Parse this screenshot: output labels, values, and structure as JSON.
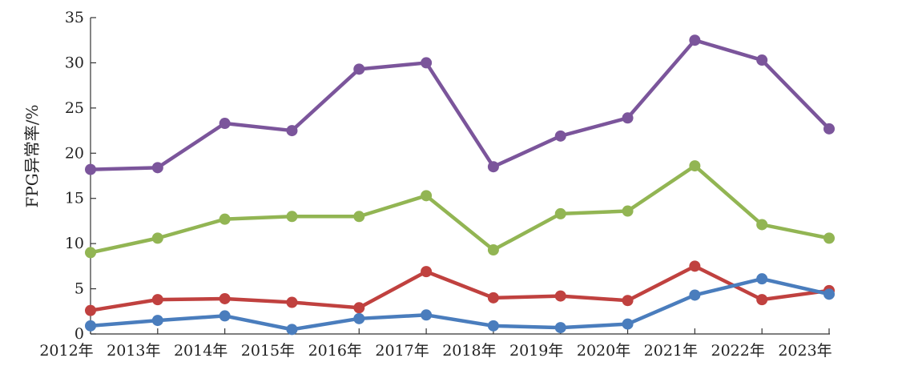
{
  "chart_data": {
    "type": "line",
    "title": "",
    "xlabel": "",
    "ylabel": "FPG异常率/%",
    "categories": [
      "2012年",
      "2013年",
      "2014年",
      "2015年",
      "2016年",
      "2017年",
      "2018年",
      "2019年",
      "2020年",
      "2021年",
      "2022年",
      "2023年"
    ],
    "ylim": [
      0,
      35
    ],
    "yticks": [
      "0",
      "5",
      "10",
      "15",
      "20",
      "25",
      "30",
      "35"
    ],
    "grid": false,
    "legend": "none",
    "series": [
      {
        "color": "#7b559b",
        "values": [
          18.2,
          18.4,
          23.3,
          22.5,
          29.3,
          30.0,
          18.5,
          21.9,
          23.9,
          32.5,
          30.3,
          22.7
        ]
      },
      {
        "color": "#92b553",
        "values": [
          9.0,
          10.6,
          12.7,
          13.0,
          13.0,
          15.3,
          9.3,
          13.3,
          13.6,
          18.6,
          12.1,
          10.6
        ]
      },
      {
        "color": "#c0413f",
        "values": [
          2.6,
          3.8,
          3.9,
          3.5,
          2.9,
          6.9,
          4.0,
          4.2,
          3.7,
          7.5,
          3.8,
          4.8
        ]
      },
      {
        "color": "#4a7dbd",
        "values": [
          0.9,
          1.5,
          2.0,
          0.5,
          1.7,
          2.1,
          0.9,
          0.7,
          1.1,
          4.3,
          6.1,
          4.4
        ]
      }
    ]
  }
}
